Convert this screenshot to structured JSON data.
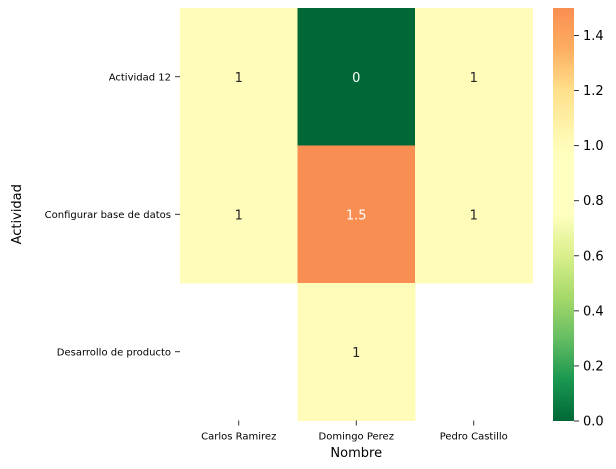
{
  "chart_data": {
    "type": "heatmap",
    "xlabel": "Nombre",
    "ylabel": "Actividad",
    "x_categories": [
      "Carlos Ramirez",
      "Domingo Perez",
      "Pedro Castillo"
    ],
    "y_categories": [
      "Actividad 12",
      "Configurar base de datos",
      "Desarrollo de producto"
    ],
    "values": [
      [
        1,
        0,
        1
      ],
      [
        1,
        1.5,
        1
      ],
      [
        null,
        1,
        null
      ]
    ],
    "annotations": [
      [
        "1",
        "0",
        "1"
      ],
      [
        "1",
        "1.5",
        "1"
      ],
      [
        "",
        "1",
        ""
      ]
    ],
    "colormap": "RdYlGn_r",
    "color_range": [
      0,
      1.5
    ],
    "colorbar": {
      "ticks": [
        0.0,
        0.2,
        0.4,
        0.6,
        0.8,
        1.0,
        1.2,
        1.4
      ],
      "tick_labels": [
        "0.0",
        "0.2",
        "0.4",
        "0.6",
        "0.8",
        "1.0",
        "1.2",
        "1.4"
      ],
      "placement": "right"
    },
    "colors": {
      "low": "#006837",
      "mid": "#ffffbf",
      "high": "#f98e52"
    }
  }
}
